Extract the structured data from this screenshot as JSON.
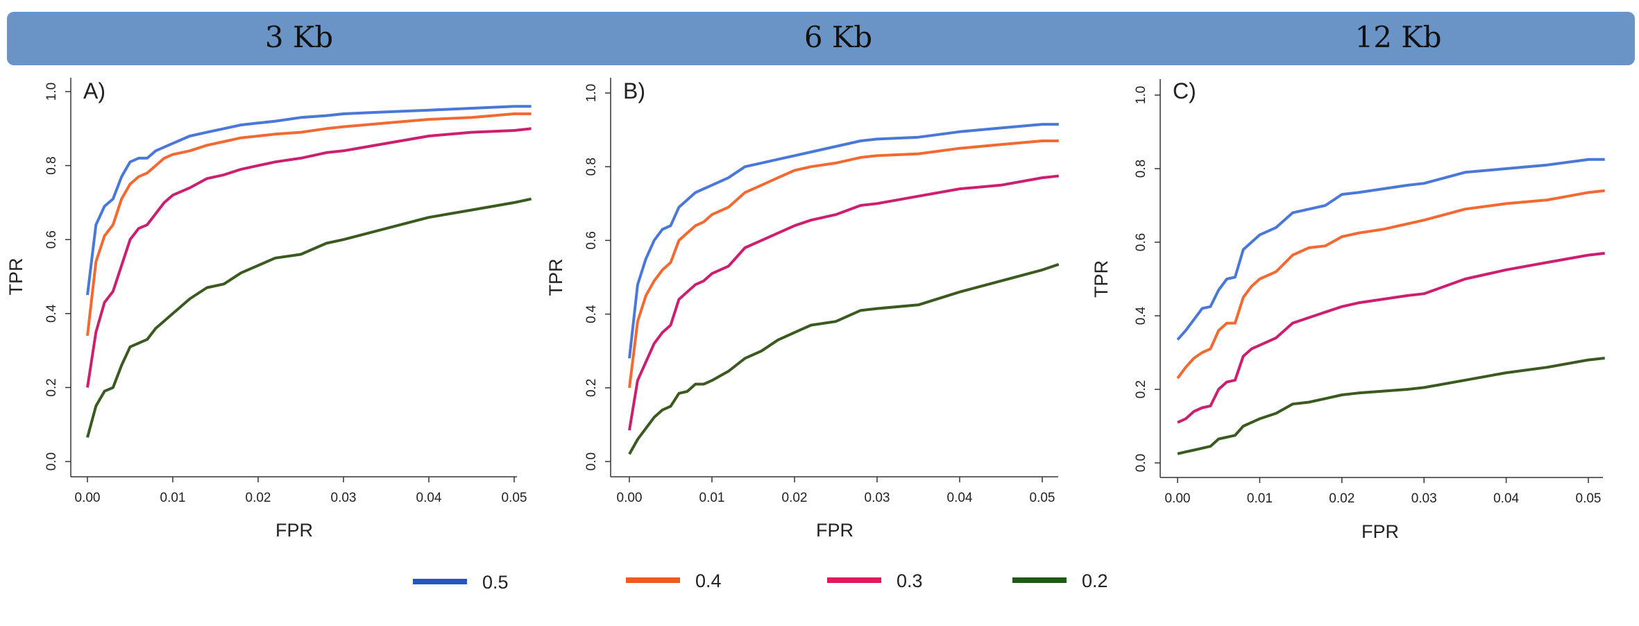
{
  "panels_header": [
    "3 Kb",
    "6 Kb",
    "12 Kb"
  ],
  "series_colors": {
    "0.5": "#4a78d8",
    "0.4": "#f26a32",
    "0.3": "#cc1f6f",
    "0.2": "#3a5a1f"
  },
  "legend": {
    "entries": [
      {
        "label": "0.5",
        "color": "#2156c4"
      },
      {
        "label": "0.4",
        "color": "#f05a1e"
      },
      {
        "label": "0.3",
        "color": "#e0185e"
      },
      {
        "label": "0.2",
        "color": "#1f5a17"
      }
    ]
  },
  "chart_data": [
    {
      "type": "line",
      "panel_label": "A)",
      "xlabel": "FPR",
      "ylabel": "TPR",
      "xlim": [
        0,
        0.052
      ],
      "ylim": [
        0,
        1.0
      ],
      "xticks": [
        "0.00",
        "0.01",
        "0.02",
        "0.03",
        "0.04",
        "0.05"
      ],
      "yticks": [
        "0.0",
        "0.2",
        "0.4",
        "0.6",
        "0.8",
        "1.0"
      ],
      "x": [
        0,
        0.001,
        0.002,
        0.003,
        0.004,
        0.005,
        0.006,
        0.007,
        0.008,
        0.009,
        0.01,
        0.012,
        0.014,
        0.016,
        0.018,
        0.02,
        0.022,
        0.025,
        0.028,
        0.03,
        0.035,
        0.04,
        0.045,
        0.05,
        0.052
      ],
      "series": [
        {
          "color": "#4a78d8",
          "values": [
            0.45,
            0.64,
            0.69,
            0.71,
            0.77,
            0.81,
            0.82,
            0.82,
            0.84,
            0.85,
            0.86,
            0.88,
            0.89,
            0.9,
            0.91,
            0.915,
            0.92,
            0.93,
            0.935,
            0.94,
            0.945,
            0.95,
            0.955,
            0.96,
            0.96
          ]
        },
        {
          "color": "#f26a32",
          "values": [
            0.34,
            0.54,
            0.61,
            0.64,
            0.71,
            0.75,
            0.77,
            0.78,
            0.8,
            0.82,
            0.83,
            0.84,
            0.855,
            0.865,
            0.875,
            0.88,
            0.885,
            0.89,
            0.9,
            0.905,
            0.915,
            0.925,
            0.93,
            0.94,
            0.94
          ]
        },
        {
          "color": "#cc1f6f",
          "values": [
            0.2,
            0.35,
            0.43,
            0.46,
            0.53,
            0.6,
            0.63,
            0.64,
            0.67,
            0.7,
            0.72,
            0.74,
            0.765,
            0.775,
            0.79,
            0.8,
            0.81,
            0.82,
            0.835,
            0.84,
            0.86,
            0.88,
            0.89,
            0.895,
            0.9
          ]
        },
        {
          "color": "#3a5a1f",
          "values": [
            0.065,
            0.15,
            0.19,
            0.2,
            0.26,
            0.31,
            0.32,
            0.33,
            0.36,
            0.38,
            0.4,
            0.44,
            0.47,
            0.48,
            0.51,
            0.53,
            0.55,
            0.56,
            0.59,
            0.6,
            0.63,
            0.66,
            0.68,
            0.7,
            0.71
          ]
        }
      ]
    },
    {
      "type": "line",
      "panel_label": "B)",
      "xlabel": "FPR",
      "ylabel": "TPR",
      "xlim": [
        0,
        0.052
      ],
      "ylim": [
        0,
        1.0
      ],
      "xticks": [
        "0.00",
        "0.01",
        "0.02",
        "0.03",
        "0.04",
        "0.05"
      ],
      "yticks": [
        "0.0",
        "0.2",
        "0.4",
        "0.6",
        "0.8",
        "1.0"
      ],
      "x": [
        0,
        0.001,
        0.002,
        0.003,
        0.004,
        0.005,
        0.006,
        0.007,
        0.008,
        0.009,
        0.01,
        0.012,
        0.014,
        0.016,
        0.018,
        0.02,
        0.022,
        0.025,
        0.028,
        0.03,
        0.035,
        0.04,
        0.045,
        0.05,
        0.052
      ],
      "series": [
        {
          "color": "#4a78d8",
          "values": [
            0.28,
            0.48,
            0.55,
            0.6,
            0.63,
            0.64,
            0.69,
            0.71,
            0.73,
            0.74,
            0.75,
            0.77,
            0.8,
            0.81,
            0.82,
            0.83,
            0.84,
            0.855,
            0.87,
            0.875,
            0.88,
            0.895,
            0.905,
            0.915,
            0.915
          ]
        },
        {
          "color": "#f26a32",
          "values": [
            0.2,
            0.38,
            0.45,
            0.49,
            0.52,
            0.54,
            0.6,
            0.62,
            0.64,
            0.65,
            0.67,
            0.69,
            0.73,
            0.75,
            0.77,
            0.79,
            0.8,
            0.81,
            0.825,
            0.83,
            0.835,
            0.85,
            0.86,
            0.87,
            0.87
          ]
        },
        {
          "color": "#cc1f6f",
          "values": [
            0.085,
            0.22,
            0.27,
            0.32,
            0.35,
            0.37,
            0.44,
            0.46,
            0.48,
            0.49,
            0.51,
            0.53,
            0.58,
            0.6,
            0.62,
            0.64,
            0.655,
            0.67,
            0.695,
            0.7,
            0.72,
            0.74,
            0.75,
            0.77,
            0.775
          ]
        },
        {
          "color": "#3a5a1f",
          "values": [
            0.02,
            0.06,
            0.09,
            0.12,
            0.14,
            0.15,
            0.185,
            0.19,
            0.21,
            0.21,
            0.22,
            0.245,
            0.28,
            0.3,
            0.33,
            0.35,
            0.37,
            0.38,
            0.41,
            0.415,
            0.425,
            0.46,
            0.49,
            0.52,
            0.535
          ]
        }
      ]
    },
    {
      "type": "line",
      "panel_label": "C)",
      "xlabel": "FPR",
      "ylabel": "TPR",
      "xlim": [
        0,
        0.052
      ],
      "ylim": [
        0,
        1.0
      ],
      "xticks": [
        "0.00",
        "0.01",
        "0.02",
        "0.03",
        "0.04",
        "0.05"
      ],
      "yticks": [
        "0.0",
        "0.2",
        "0.4",
        "0.6",
        "0.8",
        "1.0"
      ],
      "x": [
        0,
        0.001,
        0.002,
        0.003,
        0.004,
        0.005,
        0.006,
        0.007,
        0.008,
        0.009,
        0.01,
        0.012,
        0.014,
        0.016,
        0.018,
        0.02,
        0.022,
        0.025,
        0.028,
        0.03,
        0.035,
        0.04,
        0.045,
        0.05,
        0.052
      ],
      "series": [
        {
          "color": "#4a78d8",
          "values": [
            0.335,
            0.36,
            0.39,
            0.42,
            0.425,
            0.47,
            0.5,
            0.505,
            0.58,
            0.6,
            0.62,
            0.64,
            0.68,
            0.69,
            0.7,
            0.73,
            0.735,
            0.745,
            0.755,
            0.76,
            0.79,
            0.8,
            0.81,
            0.825,
            0.825
          ]
        },
        {
          "color": "#f26a32",
          "values": [
            0.23,
            0.26,
            0.285,
            0.3,
            0.31,
            0.36,
            0.38,
            0.38,
            0.45,
            0.48,
            0.5,
            0.52,
            0.565,
            0.585,
            0.59,
            0.615,
            0.625,
            0.635,
            0.65,
            0.66,
            0.69,
            0.705,
            0.715,
            0.735,
            0.74
          ]
        },
        {
          "color": "#cc1f6f",
          "values": [
            0.11,
            0.12,
            0.14,
            0.15,
            0.155,
            0.2,
            0.22,
            0.225,
            0.29,
            0.31,
            0.32,
            0.34,
            0.38,
            0.395,
            0.41,
            0.425,
            0.435,
            0.445,
            0.455,
            0.46,
            0.5,
            0.525,
            0.545,
            0.565,
            0.57
          ]
        },
        {
          "color": "#3a5a1f",
          "values": [
            0.025,
            0.03,
            0.035,
            0.04,
            0.045,
            0.065,
            0.07,
            0.075,
            0.1,
            0.11,
            0.12,
            0.135,
            0.16,
            0.165,
            0.175,
            0.185,
            0.19,
            0.195,
            0.2,
            0.205,
            0.225,
            0.245,
            0.26,
            0.28,
            0.285
          ]
        }
      ]
    }
  ]
}
